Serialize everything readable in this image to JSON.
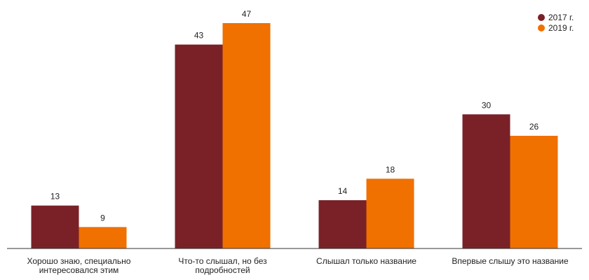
{
  "chart_data": {
    "type": "bar",
    "categories": [
      "Хорошо знаю, специально интересовался этим",
      "Что-то слышал, но без подробностей",
      "Слышал только название",
      "Впервые слышу это название"
    ],
    "series": [
      {
        "name": "2017 г.",
        "color": "#7a2128",
        "values": [
          13,
          43,
          14,
          30
        ]
      },
      {
        "name": "2019 г.",
        "color": "#f07000",
        "values": [
          9,
          47,
          18,
          26
        ]
      }
    ],
    "ylim": [
      5,
      50
    ],
    "grid": false,
    "legend": "top-right"
  }
}
